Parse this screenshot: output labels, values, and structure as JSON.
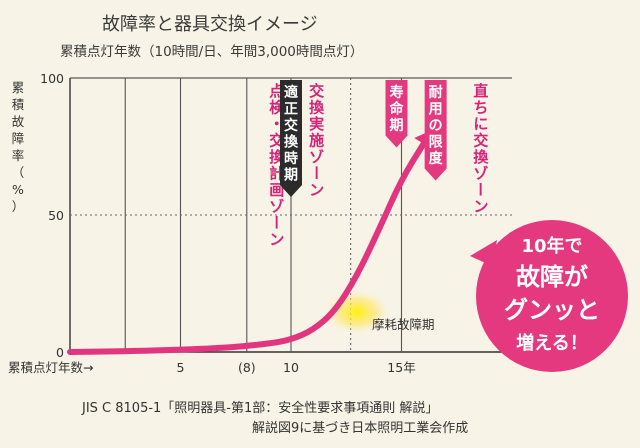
{
  "header": {
    "title": "故障率と器具交換イメージ",
    "subtitle": "累積点灯年数（10時間/日、年間3,000時間点灯）"
  },
  "chart_data": {
    "type": "line",
    "title": "故障率と器具交換イメージ",
    "subtitle": "累積点灯年数（10時間/日、年間3,000時間点灯）",
    "xlabel": "累積点灯年数→",
    "ylabel": "累積故障率（%）",
    "xlim": [
      0,
      20
    ],
    "ylim": [
      0,
      100
    ],
    "x_ticks": [
      {
        "value": 5,
        "label": "5"
      },
      {
        "value": 8,
        "label": "(8)"
      },
      {
        "value": 10,
        "label": "10"
      },
      {
        "value": 15,
        "label": "15年"
      }
    ],
    "y_ticks": [
      {
        "value": 0,
        "label": "0"
      },
      {
        "value": 50,
        "label": "50"
      },
      {
        "value": 100,
        "label": "100"
      }
    ],
    "grid": {
      "dotted_y": [
        50
      ],
      "vertical_x": [
        2.5,
        5,
        8,
        10,
        12.7,
        15
      ]
    },
    "series": [
      {
        "x": [
          0,
          4,
          7,
          9,
          10,
          11,
          12,
          13,
          14,
          15,
          16
        ],
        "y": [
          0,
          0.5,
          1.5,
          3,
          4.5,
          8,
          15,
          28,
          45,
          63,
          76
        ]
      }
    ],
    "annotations": {
      "zones": [
        {
          "x": 8,
          "label": "点検・交換計画ゾーン"
        },
        {
          "x": 10,
          "label": "適正交換時期",
          "highlight": true
        },
        {
          "x": 12.7,
          "label": "交換実施ゾーン"
        },
        {
          "x": 15,
          "label": "寿命期",
          "highlight": true
        },
        {
          "x": 16.5,
          "label": "耐用の限度",
          "highlight": true
        },
        {
          "x": 19,
          "label": "直ちに交換ゾーン"
        }
      ],
      "wear_label": "摩耗故障期",
      "callout": [
        "10年で",
        "故障が",
        "グンッと",
        "増える！"
      ]
    },
    "colors": {
      "curve": "#e2357f",
      "callout": "#e4397f",
      "highlight": "#2b2b2b",
      "spot": "#ffe000"
    }
  },
  "footer": {
    "source_line1": "JIS C 8105-1「照明器具-第1部：安全性要求事項通則 解説」",
    "source_line2": "解説図9に基づき日本照明工業会作成"
  }
}
